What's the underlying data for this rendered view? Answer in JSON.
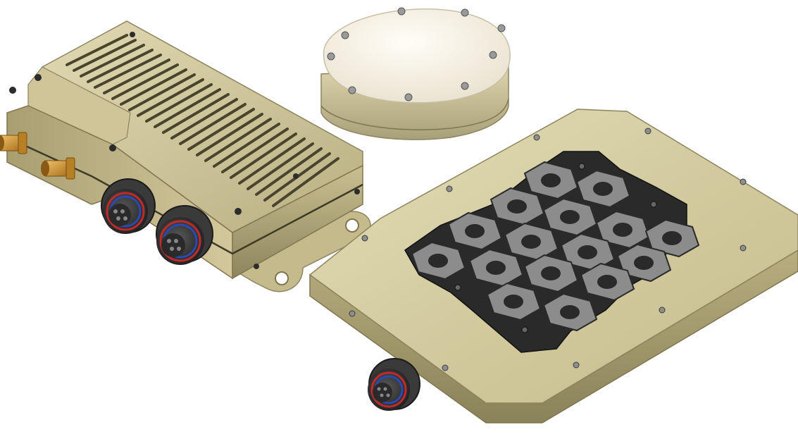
{
  "scene": {
    "background": "#ffffff",
    "objects": [
      "rf-transceiver-module",
      "dome-antenna",
      "hexagonal-array-antenna-panel"
    ]
  },
  "colors": {
    "housing_light": "#d8d0a8",
    "housing_mid": "#b8ae80",
    "housing_dark": "#7f7650",
    "dome_white": "#f6f2e6",
    "hex_tile_gray": "#7a7a7a",
    "hex_tile_dark": "#2c2c2c",
    "connector_black": "#3a3a3a",
    "sma_brass": "#c8922e"
  },
  "array": {
    "gray_tiles": 16,
    "black_tiles": 4
  }
}
